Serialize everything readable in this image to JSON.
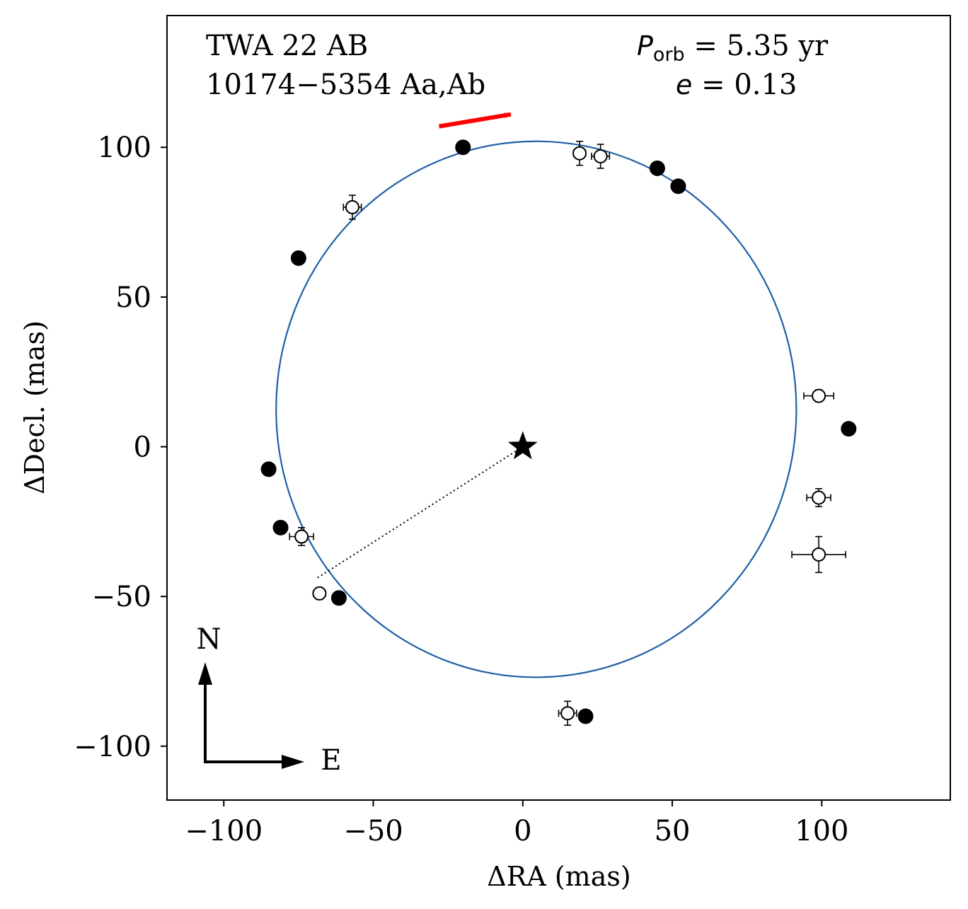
{
  "chart_data": {
    "type": "scatter",
    "title_lines": [
      "TWA 22 AB",
      "10174−5354 Aa,Ab"
    ],
    "period_label": "P",
    "period_sub": "orb",
    "period_value": " =  5.35 yr",
    "ecc_label": "e",
    "ecc_value": " = 0.13",
    "xlabel": "ΔRA  (mas)",
    "ylabel": "ΔDecl.  (mas)",
    "xlim": [
      -119,
      143
    ],
    "ylim": [
      -118,
      144
    ],
    "xticks": [
      -100,
      -50,
      0,
      50,
      100
    ],
    "yticks": [
      -100,
      -50,
      0,
      50,
      100
    ],
    "xtick_labels": [
      "−100",
      "−50",
      "0",
      "50",
      "100"
    ],
    "ytick_labels": [
      "−100",
      "−50",
      "0",
      "50",
      "100"
    ],
    "orbit_color": "#1f5fa6",
    "orbit": {
      "center": [
        4.5,
        12.5
      ],
      "radius_x": 87.0,
      "radius_y": 89.5
    },
    "primary_star": [
      0,
      0
    ],
    "node_line": {
      "from": [
        0,
        0
      ],
      "to": [
        -69,
        -44
      ]
    },
    "motion_arrow": {
      "from": [
        -28,
        107
      ],
      "to": [
        -4,
        111
      ],
      "color": "#ff0000"
    },
    "compass": {
      "north_label": "N",
      "east_label": "E"
    },
    "filled_points": [
      {
        "x": -20,
        "y": 100
      },
      {
        "x": 52,
        "y": 87
      },
      {
        "x": 45,
        "y": 93
      },
      {
        "x": -75,
        "y": 63
      },
      {
        "x": 109,
        "y": 6
      },
      {
        "x": -85,
        "y": -7.5
      },
      {
        "x": -81,
        "y": -27
      },
      {
        "x": -61.5,
        "y": -50.5
      },
      {
        "x": 21,
        "y": -90
      }
    ],
    "open_points": [
      {
        "x": 19,
        "y": 98,
        "xerr": 2,
        "yerr": 4
      },
      {
        "x": 26,
        "y": 97,
        "xerr": 3,
        "yerr": 4
      },
      {
        "x": -57,
        "y": 80,
        "xerr": 3,
        "yerr": 4
      },
      {
        "x": 99,
        "y": 17,
        "xerr": 5,
        "yerr": 2
      },
      {
        "x": 99,
        "y": -17,
        "xerr": 4,
        "yerr": 3
      },
      {
        "x": 99,
        "y": -36,
        "xerr": 9,
        "yerr": 6
      },
      {
        "x": -74,
        "y": -30,
        "xerr": 4,
        "yerr": 3
      },
      {
        "x": -68,
        "y": -49,
        "xerr": 2,
        "yerr": 2
      },
      {
        "x": 15,
        "y": -89,
        "xerr": 3,
        "yerr": 4
      }
    ]
  }
}
